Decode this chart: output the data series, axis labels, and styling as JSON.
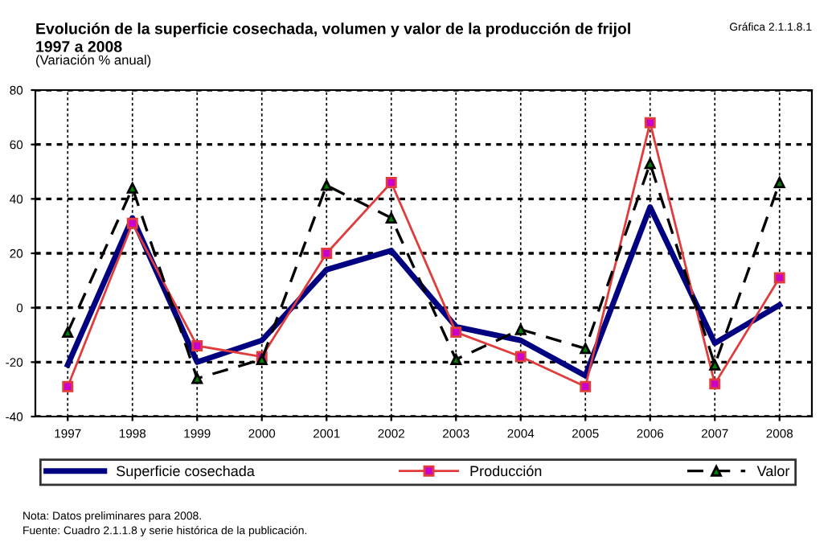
{
  "chart_data": {
    "type": "line",
    "title": "Evolución de la superficie cosechada, volumen y valor de la producción de frijol\n1997 a 2008",
    "subtitle": "(Variación % anual)",
    "categories": [
      "1997",
      "1998",
      "1999",
      "2000",
      "2001",
      "2002",
      "2003",
      "2004",
      "2005",
      "2006",
      "2007",
      "2008"
    ],
    "series": [
      {
        "name": "Superficie cosechada",
        "color": "#000080",
        "marker": "none",
        "line_style": "solid",
        "values": [
          -21,
          33,
          -20,
          -12,
          14,
          21,
          -7,
          -12,
          -25,
          37,
          -13,
          1
        ]
      },
      {
        "name": "Producción",
        "color": "#e03c3c",
        "marker": "square",
        "line_style": "solid",
        "values": [
          -29,
          31,
          -14,
          -18,
          20,
          46,
          -9,
          -18,
          -29,
          68,
          -28,
          11
        ]
      },
      {
        "name": "Valor",
        "color": "#000000",
        "marker": "triangle",
        "line_style": "dashed",
        "values": [
          -9,
          44,
          -26,
          -19,
          45,
          33,
          -19,
          -8,
          -15,
          53,
          -21,
          46
        ]
      }
    ],
    "ylim": [
      -40,
      80
    ],
    "yticks": [
      -40,
      -20,
      0,
      20,
      40,
      60,
      80
    ],
    "grid": true,
    "legend": "bottom",
    "annotations": [
      "Gráfica 2.1.1.8.1",
      "Nota: Datos preliminares para 2008.",
      "Fuente: Cuadro 2.1.1.8 y serie histórica de la publicación."
    ]
  }
}
